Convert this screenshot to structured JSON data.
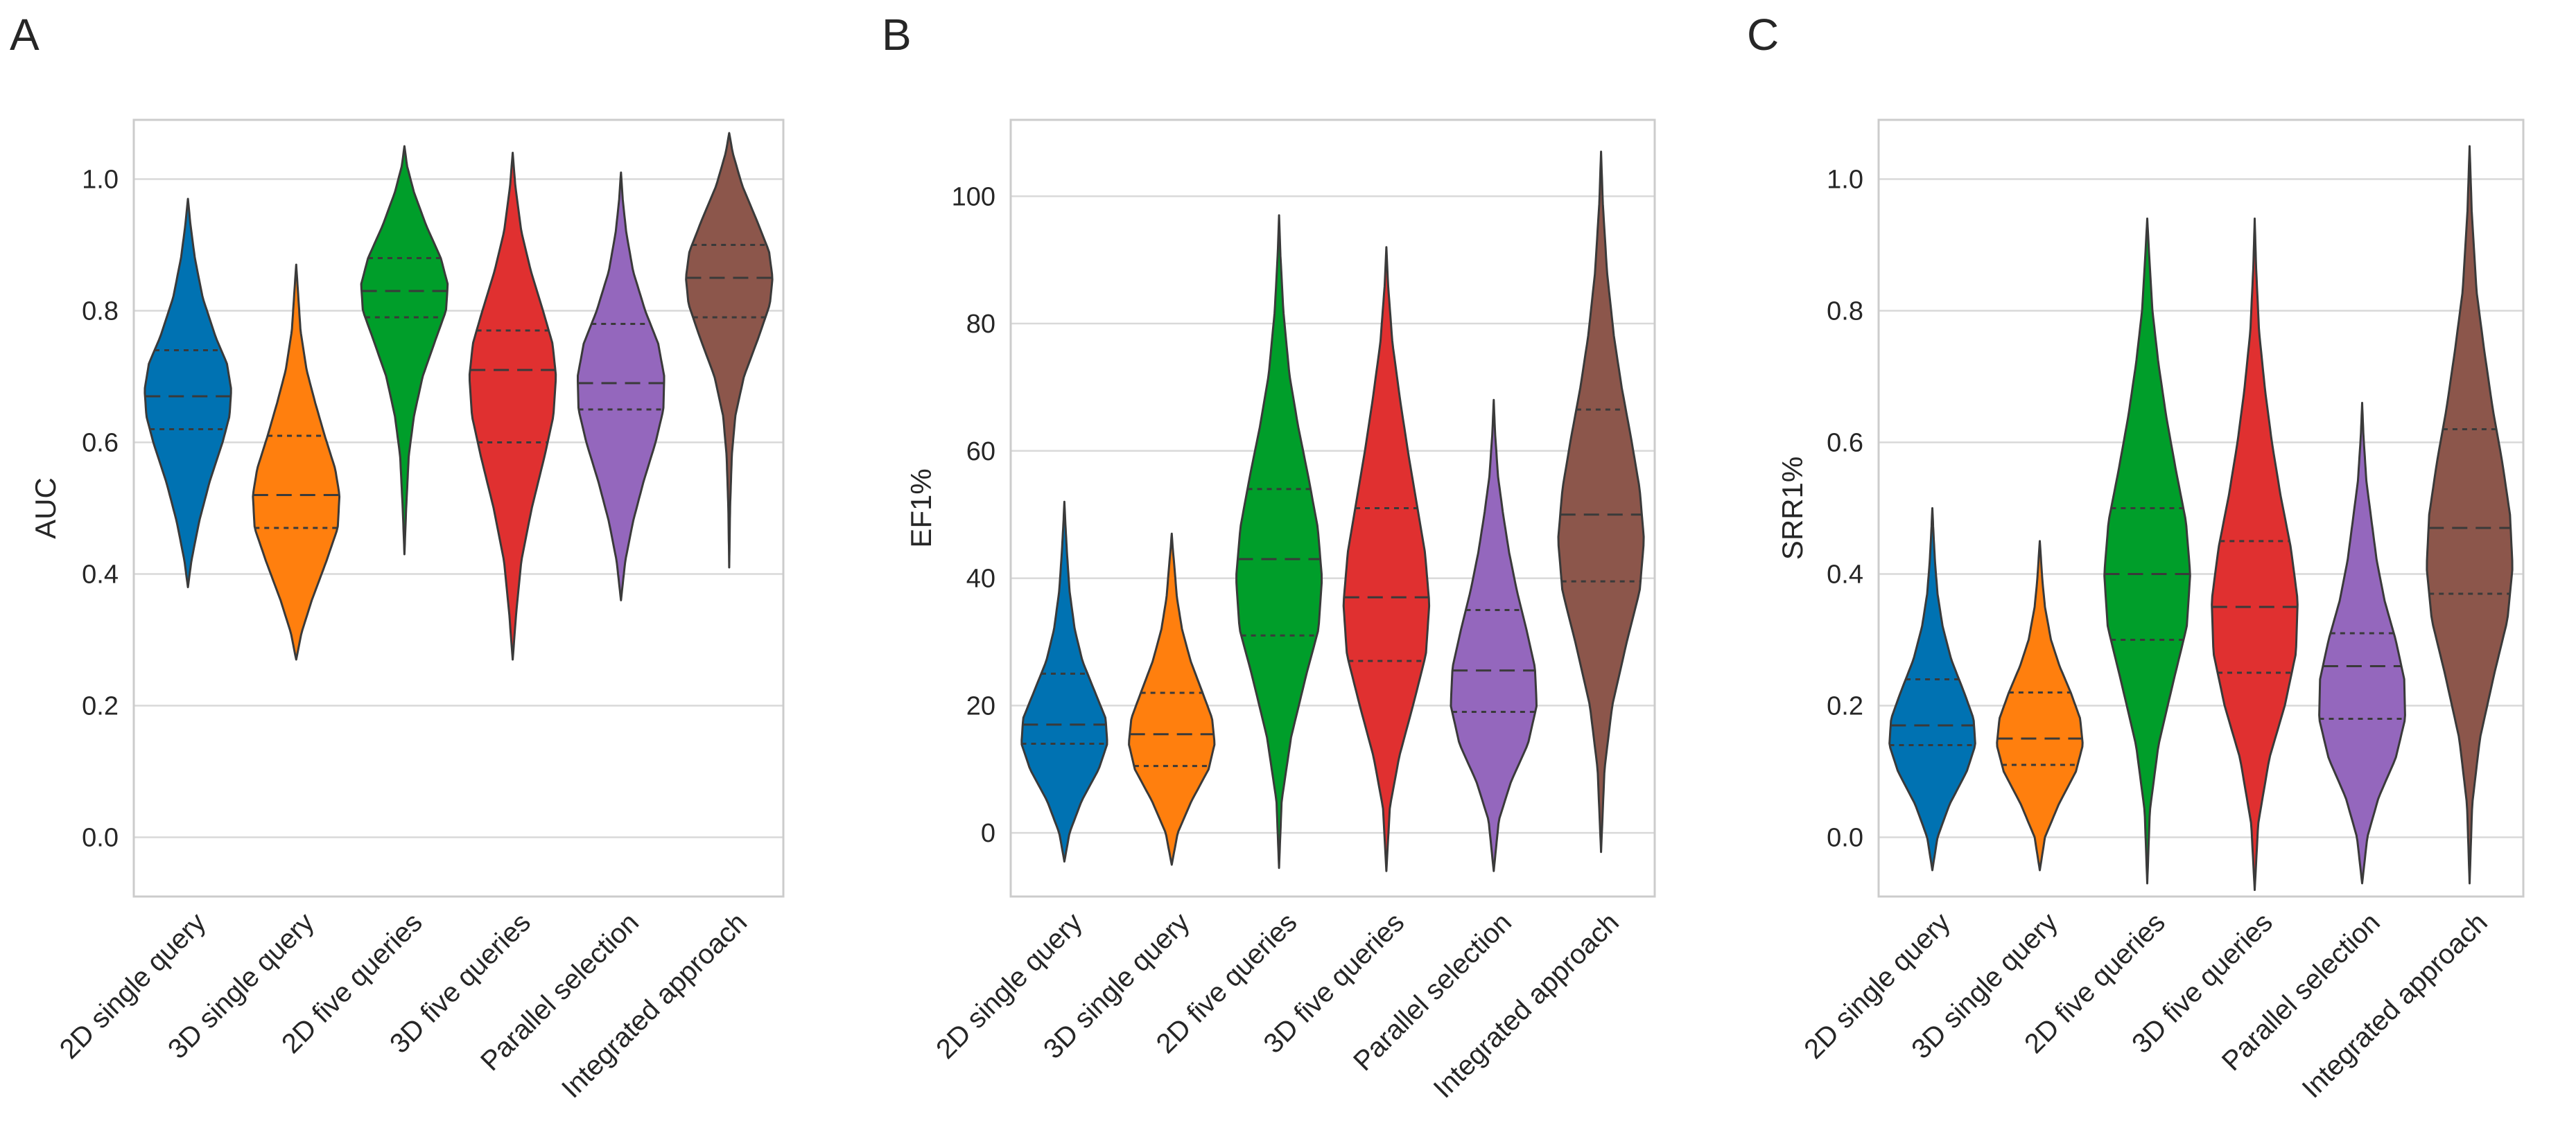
{
  "figure": {
    "type": "violin-panels",
    "line_color": "#3a3a3a",
    "grid_color": "#d9d9d9",
    "frame_color": "#cccccc"
  },
  "chart_data": [
    {
      "type": "violin",
      "panel_label": "A",
      "ylabel": "AUC",
      "xlabel": "",
      "ylim": [
        -0.09,
        1.09
      ],
      "yticks": [
        0.0,
        0.2,
        0.4,
        0.6,
        0.8,
        1.0
      ],
      "ytick_labels": [
        "0.0",
        "0.2",
        "0.4",
        "0.6",
        "0.8",
        "1.0"
      ],
      "categories": [
        "2D single query",
        "3D single query",
        "2D five queries",
        "3D five queries",
        "Parallel selection",
        "Integrated approach"
      ],
      "colors": [
        "#0072b2",
        "#ff7f0e",
        "#009e2a",
        "#e03030",
        "#9467bd",
        "#8c564b"
      ],
      "series": [
        {
          "name": "2D single query",
          "min": 0.38,
          "max": 0.97,
          "q1": 0.62,
          "median": 0.67,
          "q3": 0.74,
          "profile_y": [
            0.38,
            0.42,
            0.48,
            0.54,
            0.6,
            0.64,
            0.68,
            0.72,
            0.76,
            0.82,
            0.88,
            0.93,
            0.97
          ],
          "profile_w": [
            0.0,
            0.08,
            0.26,
            0.5,
            0.8,
            0.96,
            1.0,
            0.9,
            0.64,
            0.34,
            0.16,
            0.06,
            0.0
          ]
        },
        {
          "name": "3D single query",
          "min": 0.27,
          "max": 0.87,
          "q1": 0.47,
          "median": 0.52,
          "q3": 0.61,
          "profile_y": [
            0.27,
            0.31,
            0.36,
            0.42,
            0.47,
            0.52,
            0.56,
            0.61,
            0.66,
            0.71,
            0.77,
            0.83,
            0.87
          ],
          "profile_w": [
            0.0,
            0.12,
            0.36,
            0.7,
            0.96,
            1.0,
            0.9,
            0.66,
            0.44,
            0.24,
            0.1,
            0.04,
            0.0
          ]
        },
        {
          "name": "2D five queries",
          "min": 0.43,
          "max": 1.05,
          "q1": 0.79,
          "median": 0.83,
          "q3": 0.88,
          "profile_y": [
            0.43,
            0.5,
            0.58,
            0.64,
            0.7,
            0.76,
            0.8,
            0.84,
            0.88,
            0.93,
            0.98,
            1.02,
            1.05
          ],
          "profile_w": [
            0.0,
            0.04,
            0.1,
            0.22,
            0.42,
            0.74,
            0.96,
            1.0,
            0.84,
            0.5,
            0.22,
            0.06,
            0.0
          ]
        },
        {
          "name": "3D five queries",
          "min": 0.27,
          "max": 1.04,
          "q1": 0.6,
          "median": 0.71,
          "q3": 0.77,
          "profile_y": [
            0.27,
            0.34,
            0.42,
            0.5,
            0.58,
            0.64,
            0.7,
            0.75,
            0.8,
            0.86,
            0.92,
            0.99,
            1.04
          ],
          "profile_w": [
            0.0,
            0.08,
            0.2,
            0.44,
            0.74,
            0.94,
            1.0,
            0.92,
            0.7,
            0.42,
            0.2,
            0.06,
            0.0
          ]
        },
        {
          "name": "Parallel selection",
          "min": 0.36,
          "max": 1.01,
          "q1": 0.65,
          "median": 0.69,
          "q3": 0.78,
          "profile_y": [
            0.36,
            0.42,
            0.48,
            0.54,
            0.6,
            0.65,
            0.7,
            0.75,
            0.8,
            0.86,
            0.92,
            0.97,
            1.01
          ],
          "profile_w": [
            0.0,
            0.1,
            0.28,
            0.52,
            0.8,
            0.98,
            1.0,
            0.86,
            0.56,
            0.28,
            0.12,
            0.04,
            0.0
          ]
        },
        {
          "name": "Integrated approach",
          "min": 0.41,
          "max": 1.07,
          "q1": 0.79,
          "median": 0.85,
          "q3": 0.9,
          "profile_y": [
            0.41,
            0.5,
            0.58,
            0.64,
            0.7,
            0.76,
            0.81,
            0.85,
            0.89,
            0.94,
            0.99,
            1.04,
            1.07
          ],
          "profile_w": [
            0.0,
            0.02,
            0.06,
            0.14,
            0.34,
            0.68,
            0.94,
            1.0,
            0.92,
            0.62,
            0.3,
            0.08,
            0.0
          ]
        }
      ]
    },
    {
      "type": "violin",
      "panel_label": "B",
      "ylabel": "EF1%",
      "xlabel": "",
      "ylim": [
        -10,
        112
      ],
      "yticks": [
        0,
        20,
        40,
        60,
        80,
        100
      ],
      "ytick_labels": [
        "0",
        "20",
        "40",
        "60",
        "80",
        "100"
      ],
      "categories": [
        "2D single query",
        "3D single query",
        "2D five queries",
        "3D five queries",
        "Parallel selection",
        "Integrated approach"
      ],
      "colors": [
        "#0072b2",
        "#ff7f0e",
        "#009e2a",
        "#e03030",
        "#9467bd",
        "#8c564b"
      ],
      "series": [
        {
          "name": "2D single query",
          "min": -4.5,
          "max": 52,
          "q1": 14,
          "median": 17,
          "q3": 25,
          "profile_y": [
            -4.5,
            0,
            5,
            10,
            14,
            18,
            22,
            27,
            32,
            38,
            44,
            49,
            52
          ],
          "profile_w": [
            0.0,
            0.12,
            0.4,
            0.8,
            1.0,
            0.96,
            0.72,
            0.42,
            0.24,
            0.12,
            0.06,
            0.02,
            0.0
          ]
        },
        {
          "name": "3D single query",
          "min": -5,
          "max": 47,
          "q1": 10.5,
          "median": 15.5,
          "q3": 22,
          "profile_y": [
            -5,
            0,
            5,
            10,
            14,
            18,
            22,
            27,
            32,
            37,
            42,
            45,
            47
          ],
          "profile_w": [
            0.0,
            0.14,
            0.46,
            0.86,
            1.0,
            0.94,
            0.72,
            0.44,
            0.24,
            0.12,
            0.06,
            0.02,
            0.0
          ]
        },
        {
          "name": "2D five queries",
          "min": -5.5,
          "max": 97,
          "q1": 31,
          "median": 43,
          "q3": 54,
          "profile_y": [
            -5.5,
            5,
            15,
            25,
            32,
            40,
            48,
            56,
            64,
            72,
            82,
            91,
            97
          ],
          "profile_w": [
            0.0,
            0.06,
            0.28,
            0.64,
            0.92,
            1.0,
            0.9,
            0.68,
            0.44,
            0.24,
            0.1,
            0.03,
            0.0
          ]
        },
        {
          "name": "3D five queries",
          "min": -6,
          "max": 92,
          "q1": 27,
          "median": 37,
          "q3": 51,
          "profile_y": [
            -6,
            4,
            12,
            20,
            28,
            36,
            44,
            52,
            60,
            68,
            77,
            86,
            92
          ],
          "profile_w": [
            0.0,
            0.08,
            0.3,
            0.62,
            0.92,
            1.0,
            0.9,
            0.7,
            0.5,
            0.32,
            0.14,
            0.04,
            0.0
          ]
        },
        {
          "name": "Parallel selection",
          "min": -6,
          "max": 68,
          "q1": 19,
          "median": 25.5,
          "q3": 35,
          "profile_y": [
            -6,
            2,
            8,
            14,
            20,
            26,
            32,
            38,
            44,
            50,
            56,
            63,
            68
          ],
          "profile_w": [
            0.0,
            0.12,
            0.4,
            0.8,
            1.0,
            0.96,
            0.76,
            0.54,
            0.36,
            0.22,
            0.1,
            0.03,
            0.0
          ]
        },
        {
          "name": "Integrated approach",
          "min": -3,
          "max": 107,
          "q1": 39.5,
          "median": 50,
          "q3": 66.5,
          "profile_y": [
            -3,
            10,
            20,
            30,
            38,
            46,
            54,
            62,
            70,
            78,
            88,
            99,
            107
          ],
          "profile_w": [
            0.0,
            0.08,
            0.26,
            0.6,
            0.9,
            1.0,
            0.9,
            0.7,
            0.48,
            0.3,
            0.14,
            0.04,
            0.0
          ]
        }
      ]
    },
    {
      "type": "violin",
      "panel_label": "C",
      "ylabel": "SRR1%",
      "xlabel": "",
      "ylim": [
        -0.09,
        1.09
      ],
      "yticks": [
        0.0,
        0.2,
        0.4,
        0.6,
        0.8,
        1.0
      ],
      "ytick_labels": [
        "0.0",
        "0.2",
        "0.4",
        "0.6",
        "0.8",
        "1.0"
      ],
      "categories": [
        "2D single query",
        "3D single query",
        "2D five queries",
        "3D five queries",
        "Parallel selection",
        "Integrated approach"
      ],
      "colors": [
        "#0072b2",
        "#ff7f0e",
        "#009e2a",
        "#e03030",
        "#9467bd",
        "#8c564b"
      ],
      "series": [
        {
          "name": "2D single query",
          "min": -0.05,
          "max": 0.5,
          "q1": 0.14,
          "median": 0.17,
          "q3": 0.24,
          "profile_y": [
            -0.05,
            0.0,
            0.05,
            0.1,
            0.14,
            0.18,
            0.22,
            0.27,
            0.32,
            0.37,
            0.42,
            0.47,
            0.5
          ],
          "profile_w": [
            0.0,
            0.12,
            0.4,
            0.8,
            1.0,
            0.96,
            0.74,
            0.44,
            0.24,
            0.12,
            0.06,
            0.02,
            0.0
          ]
        },
        {
          "name": "3D single query",
          "min": -0.05,
          "max": 0.45,
          "q1": 0.11,
          "median": 0.15,
          "q3": 0.22,
          "profile_y": [
            -0.05,
            0.0,
            0.05,
            0.1,
            0.14,
            0.18,
            0.22,
            0.26,
            0.3,
            0.35,
            0.39,
            0.43,
            0.45
          ],
          "profile_w": [
            0.0,
            0.12,
            0.44,
            0.84,
            1.0,
            0.94,
            0.72,
            0.46,
            0.26,
            0.12,
            0.06,
            0.02,
            0.0
          ]
        },
        {
          "name": "2D five queries",
          "min": -0.07,
          "max": 0.94,
          "q1": 0.3,
          "median": 0.4,
          "q3": 0.5,
          "profile_y": [
            -0.07,
            0.04,
            0.14,
            0.24,
            0.32,
            0.4,
            0.48,
            0.56,
            0.64,
            0.72,
            0.8,
            0.89,
            0.94
          ],
          "profile_w": [
            0.0,
            0.06,
            0.26,
            0.62,
            0.92,
            1.0,
            0.9,
            0.66,
            0.44,
            0.26,
            0.12,
            0.04,
            0.0
          ]
        },
        {
          "name": "3D five queries",
          "min": -0.08,
          "max": 0.94,
          "q1": 0.25,
          "median": 0.35,
          "q3": 0.45,
          "profile_y": [
            -0.08,
            0.02,
            0.12,
            0.2,
            0.28,
            0.36,
            0.44,
            0.52,
            0.6,
            0.68,
            0.77,
            0.87,
            0.94
          ],
          "profile_w": [
            0.0,
            0.08,
            0.34,
            0.7,
            0.96,
            1.0,
            0.84,
            0.6,
            0.4,
            0.24,
            0.1,
            0.03,
            0.0
          ]
        },
        {
          "name": "Parallel selection",
          "min": -0.07,
          "max": 0.66,
          "q1": 0.18,
          "median": 0.26,
          "q3": 0.31,
          "profile_y": [
            -0.07,
            0.0,
            0.06,
            0.12,
            0.18,
            0.24,
            0.3,
            0.36,
            0.42,
            0.48,
            0.54,
            0.61,
            0.66
          ],
          "profile_w": [
            0.0,
            0.12,
            0.38,
            0.78,
            1.0,
            0.98,
            0.78,
            0.52,
            0.34,
            0.22,
            0.1,
            0.03,
            0.0
          ]
        },
        {
          "name": "Integrated approach",
          "min": -0.07,
          "max": 1.05,
          "q1": 0.37,
          "median": 0.47,
          "q3": 0.62,
          "profile_y": [
            -0.07,
            0.05,
            0.15,
            0.25,
            0.33,
            0.41,
            0.49,
            0.57,
            0.65,
            0.74,
            0.83,
            0.95,
            1.05
          ],
          "profile_w": [
            0.0,
            0.06,
            0.24,
            0.58,
            0.88,
            1.0,
            0.94,
            0.76,
            0.54,
            0.34,
            0.16,
            0.05,
            0.0
          ]
        }
      ]
    }
  ]
}
